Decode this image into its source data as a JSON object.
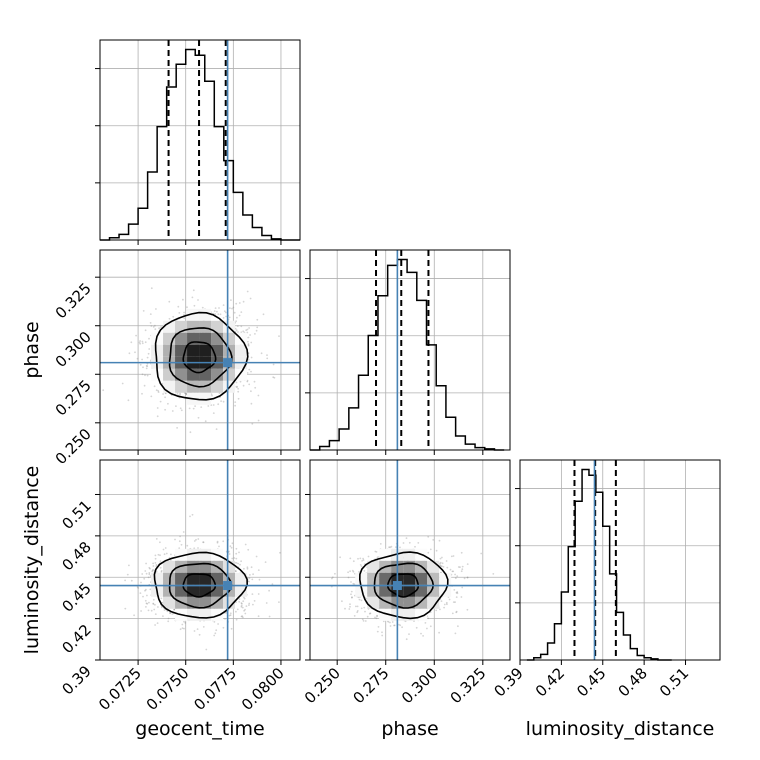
{
  "chart_data": {
    "type": "corner",
    "parameters": [
      {
        "name": "geocent_time",
        "label": "geocent_time",
        "range": [
          0.0705,
          0.081
        ],
        "ticks": [
          0.0725,
          0.075,
          0.0775,
          0.08
        ],
        "tick_labels": [
          "0.0725",
          "0.0750",
          "0.0775",
          "0.0800"
        ],
        "truth": 0.0772,
        "quantiles": [
          0.0741,
          0.0757,
          0.0771
        ],
        "hist_bins": [
          0.0705,
          0.071,
          0.0715,
          0.072,
          0.0725,
          0.073,
          0.0735,
          0.074,
          0.0745,
          0.075,
          0.0755,
          0.076,
          0.0765,
          0.077,
          0.0775,
          0.078,
          0.0785,
          0.079,
          0.0795,
          0.08,
          0.0805,
          0.081
        ],
        "hist_counts": [
          0,
          2,
          5,
          14,
          28,
          60,
          100,
          135,
          155,
          168,
          163,
          140,
          100,
          70,
          42,
          22,
          11,
          4,
          1,
          0,
          0
        ]
      },
      {
        "name": "phase",
        "label": "phase",
        "range": [
          0.236,
          0.339
        ],
        "ticks": [
          0.25,
          0.275,
          0.3,
          0.325
        ],
        "tick_labels": [
          "0.250",
          "0.275",
          "0.300",
          "0.325"
        ],
        "truth": 0.281,
        "quantiles": [
          0.27,
          0.283,
          0.297
        ],
        "hist_bins": [
          0.236,
          0.241,
          0.246,
          0.251,
          0.256,
          0.261,
          0.266,
          0.271,
          0.276,
          0.281,
          0.286,
          0.291,
          0.296,
          0.301,
          0.306,
          0.311,
          0.316,
          0.321,
          0.326,
          0.331,
          0.336
        ],
        "hist_counts": [
          0,
          3,
          8,
          18,
          36,
          64,
          98,
          132,
          158,
          163,
          152,
          128,
          90,
          55,
          28,
          12,
          5,
          2,
          1,
          0
        ]
      },
      {
        "name": "luminosity_distance",
        "label": "luminosity_distance",
        "range": [
          0.39,
          0.535
        ],
        "ticks": [
          0.39,
          0.42,
          0.45,
          0.48,
          0.51
        ],
        "tick_labels": [
          "0.39",
          "0.42",
          "0.45",
          "0.48",
          "0.51"
        ],
        "truth": 0.444,
        "quantiles": [
          0.4295,
          0.4445,
          0.4595
        ],
        "hist_bins": [
          0.395,
          0.4,
          0.405,
          0.41,
          0.415,
          0.42,
          0.425,
          0.43,
          0.435,
          0.44,
          0.445,
          0.45,
          0.455,
          0.46,
          0.465,
          0.47,
          0.475,
          0.48,
          0.485,
          0.49,
          0.495,
          0.5
        ],
        "hist_counts": [
          0,
          2,
          5,
          15,
          32,
          60,
          100,
          140,
          168,
          163,
          148,
          118,
          76,
          42,
          22,
          10,
          4,
          2,
          1,
          0,
          0
        ]
      }
    ],
    "pairs": [
      {
        "x": "geocent_time",
        "y": "phase",
        "center": [
          0.0757,
          0.284
        ],
        "spread": [
          0.0012,
          0.0112
        ]
      },
      {
        "x": "geocent_time",
        "y": "luminosity_distance",
        "center": [
          0.0757,
          0.4445
        ],
        "spread": [
          0.0012,
          0.0118
        ]
      },
      {
        "x": "phase",
        "y": "luminosity_distance",
        "center": [
          0.284,
          0.4445
        ],
        "spread": [
          0.0112,
          0.0118
        ]
      }
    ],
    "grid": true,
    "colors": {
      "truth": "#4682b4",
      "hist": "#000000",
      "points": "#888888"
    }
  }
}
